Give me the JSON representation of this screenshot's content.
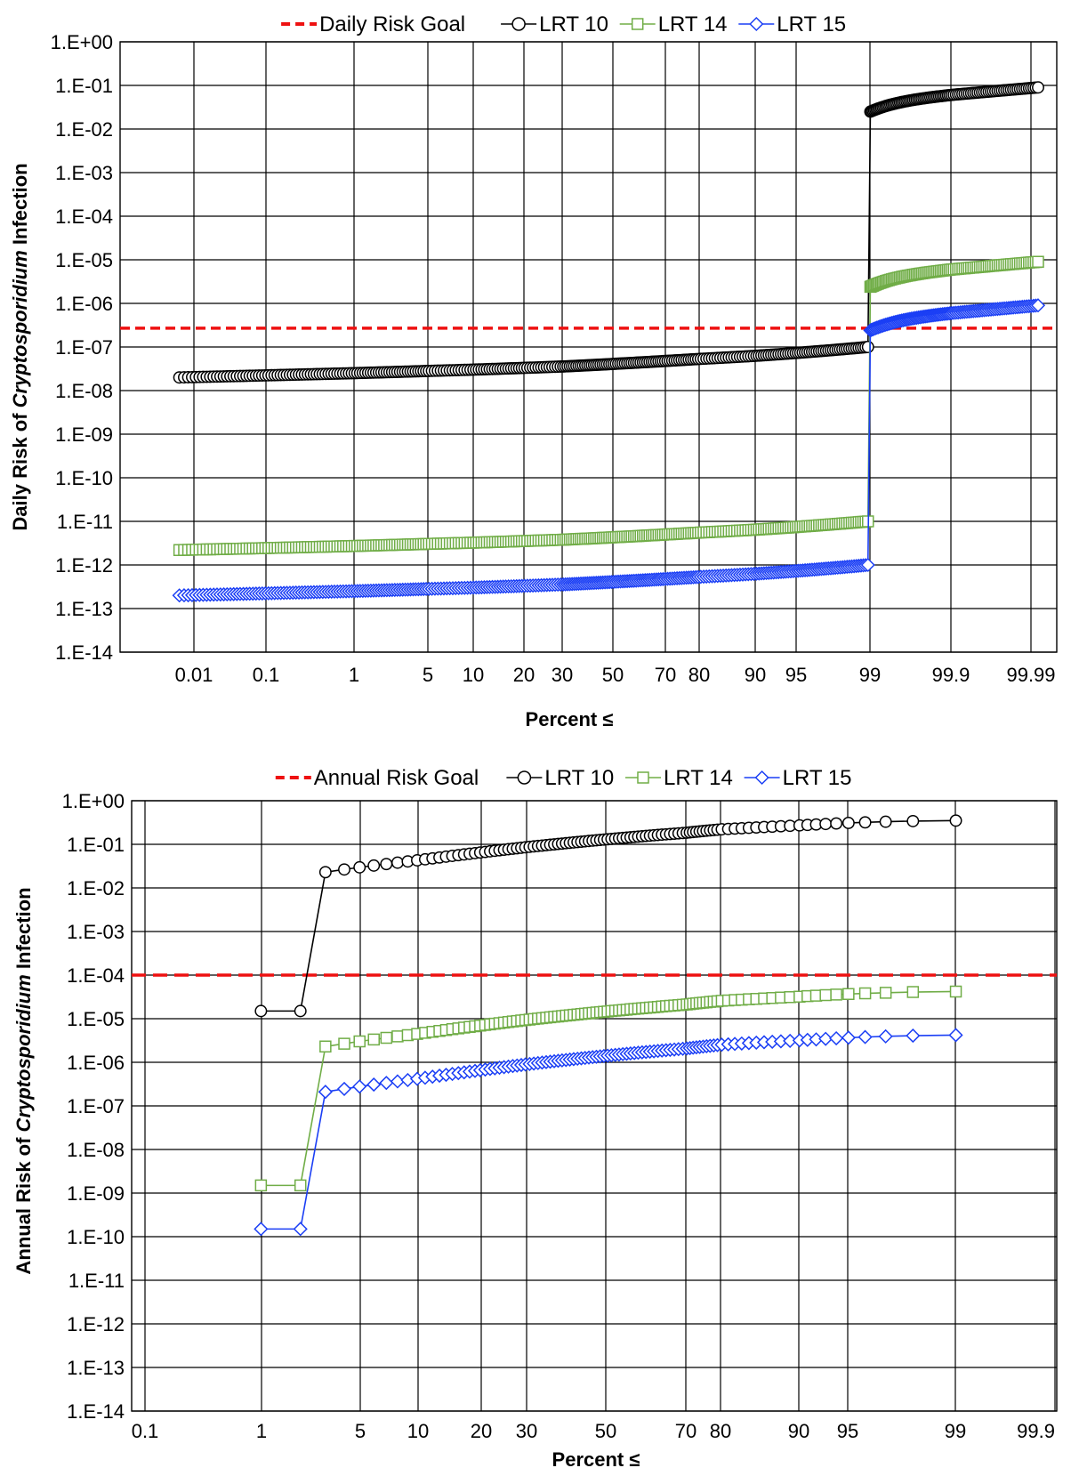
{
  "charts": [
    {
      "id": "daily",
      "type": "scatter",
      "scale_y": "log10",
      "scale_x": "probability",
      "ylim_exp": [
        -14,
        0
      ],
      "y_tick_labels": [
        "1.E-14",
        "1.E-13",
        "1.E-12",
        "1.E-11",
        "1.E-10",
        "1.E-09",
        "1.E-08",
        "1.E-07",
        "1.E-06",
        "1.E-05",
        "1.E-04",
        "1.E-03",
        "1.E-02",
        "1.E-01",
        "1.E+00"
      ],
      "x_tick_labels": [
        "0.01",
        "0.1",
        "1",
        "5",
        "10",
        "20",
        "30",
        "50",
        "70",
        "80",
        "90",
        "95",
        "99",
        "99.9",
        "99.99"
      ],
      "xlabel": "Percent ≤",
      "ylabel_parts": [
        "Daily Risk of ",
        "Cryptosporidium",
        " Infection"
      ],
      "legend": [
        "Daily Risk Goal",
        "LRT 10",
        "LRT 14",
        "LRT 15"
      ],
      "goal": 2.7e-07,
      "series_shape": {
        "xmin": 0.006,
        "xmax": 99.992,
        "split": 99,
        "low_start": [
          2e-08,
          2.2e-12,
          2e-13
        ],
        "low_end": [
          1e-07,
          1e-11,
          1e-12
        ],
        "high_start": [
          0.025,
          2.4e-06,
          2.4e-07
        ],
        "high_end": [
          0.09,
          9e-06,
          9e-07
        ]
      }
    },
    {
      "id": "annual",
      "type": "scatter",
      "scale_y": "log10",
      "scale_x": "probability",
      "ylim_exp": [
        -14,
        0
      ],
      "y_tick_labels": [
        "1.E-14",
        "1.E-13",
        "1.E-12",
        "1.E-11",
        "1.E-10",
        "1.E-09",
        "1.E-08",
        "1.E-07",
        "1.E-06",
        "1.E-05",
        "1.E-04",
        "1.E-03",
        "1.E-02",
        "1.E-01",
        "1.E+00"
      ],
      "x_tick_labels": [
        "0.1",
        "1",
        "5",
        "10",
        "20",
        "30",
        "50",
        "70",
        "80",
        "90",
        "95",
        "99",
        "99.9"
      ],
      "xlabel": "Percent ≤",
      "ylabel_parts": [
        "Annual Risk of ",
        "Cryptosporidium",
        " Infection"
      ],
      "legend": [
        "Annual Risk Goal",
        "LRT 10",
        "LRT 14",
        "LRT 15"
      ],
      "goal": 0.0001,
      "series_shape": {
        "n": 100,
        "first_two": [
          [
            1.5e-05,
            1.5e-05
          ],
          [
            1.5e-09,
            1.5e-09
          ],
          [
            1.5e-10,
            1.5e-10
          ]
        ],
        "third": [
          0.023,
          2.3e-06,
          2.1e-07
        ],
        "last": [
          0.35,
          4.2e-05,
          4.2e-06
        ]
      }
    }
  ],
  "legend_labels": [
    "Daily Risk Goal",
    "LRT 10",
    "LRT 14",
    "LRT 15",
    "Annual Risk Goal"
  ],
  "colors": {
    "goal": "#ee1111",
    "lrt10": "#000000",
    "lrt14": "#70ad47",
    "lrt15": "#1a3ef5",
    "grid": "#000000"
  }
}
